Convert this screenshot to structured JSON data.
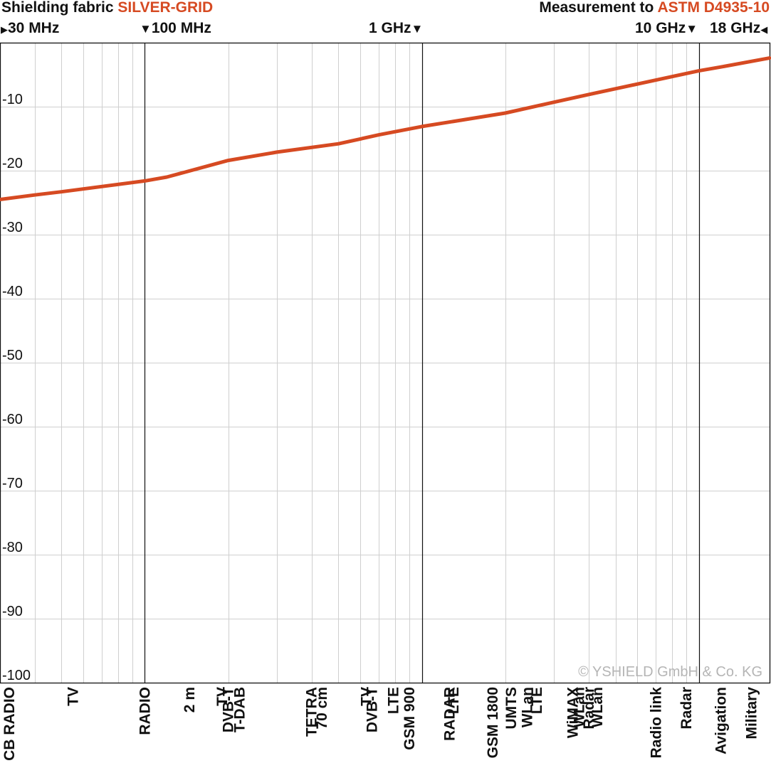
{
  "header": {
    "left_prefix": "Shielding fabric",
    "left_accent": "SILVER-GRID",
    "right_prefix": "Measurement to",
    "right_accent": "ASTM D4935-10"
  },
  "frequency_markers": [
    {
      "label": "30 MHz",
      "arrow": "▶",
      "arrow_side": "left"
    },
    {
      "label": "100 MHz",
      "arrow": "▼",
      "arrow_side": "left"
    },
    {
      "label": "1 GHz",
      "arrow": "▼",
      "arrow_side": "right"
    },
    {
      "label": "10 GHz",
      "arrow": "▼",
      "arrow_side": "right"
    },
    {
      "label": "18 GHz",
      "arrow": "◀",
      "arrow_side": "right"
    }
  ],
  "copyright": "© YSHIELD GmbH & Co. KG",
  "colors": {
    "accent": "#d64a22",
    "curve": "#d64a22",
    "grid": "#cfcfcf",
    "major": "#111111"
  },
  "chart_data": {
    "type": "line",
    "x_scale": "log",
    "xlim": [
      30,
      18000
    ],
    "x_unit": "MHz",
    "ylim": [
      -100,
      0
    ],
    "y_ticks": [
      -10,
      -20,
      -30,
      -40,
      -50,
      -60,
      -70,
      -80,
      -90,
      -100
    ],
    "grid": true,
    "series": [
      {
        "x": [
          30,
          40,
          50,
          100,
          120,
          200,
          300,
          500,
          700,
          1000,
          2000,
          3000,
          4000,
          5000,
          8000,
          10000,
          12000,
          18000
        ],
        "y": [
          -24.5,
          -23.8,
          -23.3,
          -21.6,
          -21.0,
          -18.4,
          -17.1,
          -15.8,
          -14.4,
          -13.1,
          -11.0,
          -9.3,
          -8.1,
          -7.2,
          -5.3,
          -4.4,
          -3.8,
          -2.4
        ]
      }
    ],
    "band_labels": [
      {
        "text": "CB RADIO",
        "f": 27
      },
      {
        "text": "TV",
        "f": 55
      },
      {
        "text": "RADIO",
        "f": 100
      },
      {
        "text": "2 m",
        "f": 145
      },
      {
        "text": "TV",
        "f": 190
      },
      {
        "text": "DVB-T",
        "f": 200
      },
      {
        "text": "T-DAB",
        "f": 220
      },
      {
        "text": "TETRA",
        "f": 400
      },
      {
        "text": "70 cm",
        "f": 435
      },
      {
        "text": "TV",
        "f": 630
      },
      {
        "text": "DVB-T",
        "f": 660
      },
      {
        "text": "LTE",
        "f": 790
      },
      {
        "text": "GSM 900",
        "f": 900
      },
      {
        "text": "RADAR",
        "f": 1260
      },
      {
        "text": "LTE",
        "f": 1300
      },
      {
        "text": "GSM 1800",
        "f": 1800
      },
      {
        "text": "UMTS",
        "f": 2100
      },
      {
        "text": "WLan",
        "f": 2400
      },
      {
        "text": "LTE",
        "f": 2600
      },
      {
        "text": "WiMAX",
        "f": 3500
      },
      {
        "text": "WLan",
        "f": 3700
      },
      {
        "text": "Radar",
        "f": 4000
      },
      {
        "text": "WLan",
        "f": 4300
      },
      {
        "text": "Radio link",
        "f": 7000
      },
      {
        "text": "Radar",
        "f": 9000
      },
      {
        "text": "Avigation",
        "f": 12000
      },
      {
        "text": "Military",
        "f": 15500
      }
    ]
  }
}
